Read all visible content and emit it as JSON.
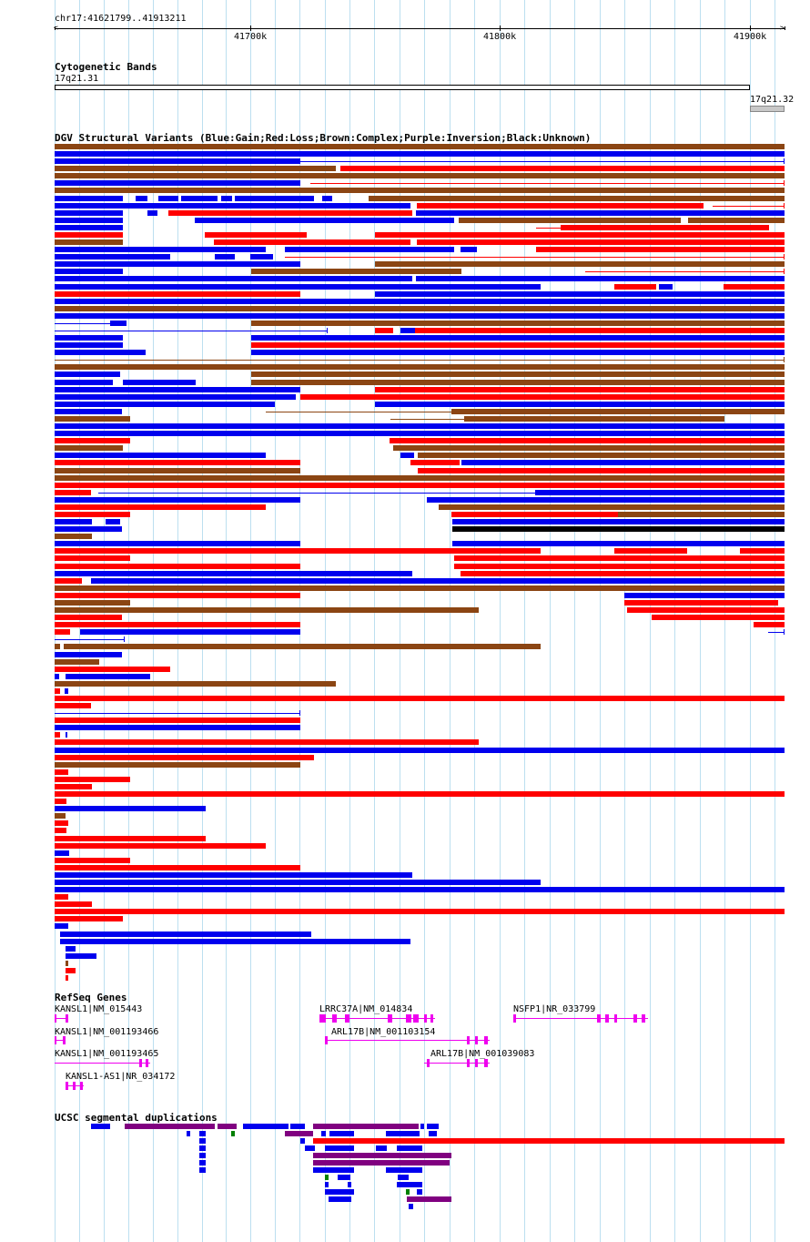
{
  "region": {
    "label": "chr17:41621799..41913211",
    "start": 41621799,
    "end": 41913211,
    "ticks": [
      {
        "label": "41700k",
        "pos": 41700000
      },
      {
        "label": "41800k",
        "pos": 41800000
      },
      {
        "label": "41900k",
        "pos": 41900000
      }
    ]
  },
  "tracks": {
    "cytoband": {
      "title": "Cytogenetic Bands",
      "bands": [
        {
          "label": "17q21.31",
          "start": 41621799,
          "end": 41900000,
          "fill": "#ffffff"
        },
        {
          "label": "17q21.32",
          "start": 41900000,
          "end": 41913211,
          "fill": "#c8c8c8"
        }
      ]
    },
    "dgv": {
      "title": "DGV Structural Variants (Blue:Gain;Red:Loss;Brown:Complex;Purple:Inversion;Black:Unknown)"
    },
    "refseq": {
      "title": "RefSeq Genes",
      "genes": [
        {
          "label": "KANSL1|NM_015443"
        },
        {
          "label": "KANSL1|NM_001193466"
        },
        {
          "label": "KANSL1|NM_001193465"
        },
        {
          "label": "KANSL1-AS1|NR_034172"
        },
        {
          "label": "LRRC37A|NM_014834"
        },
        {
          "label": "ARL17B|NM_001103154"
        },
        {
          "label": "ARL17B|NM_001039083"
        },
        {
          "label": "NSFP1|NR_033799"
        }
      ]
    },
    "segdup": {
      "title": "UCSC segmental duplications"
    }
  },
  "colors": {
    "gain": "#0000ee",
    "loss": "#ff0000",
    "complex": "#8b4513",
    "inversion": "#800080",
    "unknown": "#000000",
    "gene": "#ee00ee",
    "segdup_green": "#008000",
    "grid": "#bcdff0"
  }
}
